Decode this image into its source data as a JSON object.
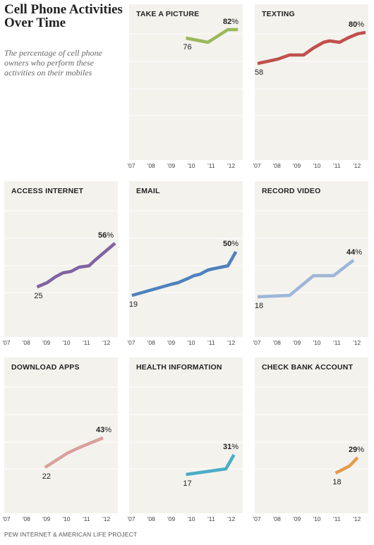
{
  "title": "Cell Phone Activities Over Time",
  "subtitle": "The percentage of cell phone owners who perform these activities on their mobiles",
  "source": "PEW INTERNET & AMERICAN LIFE PROJECT",
  "x_tick_labels": [
    "'07",
    "'08",
    "'09",
    "'10",
    "'11",
    "'12"
  ],
  "chart_data": [
    {
      "type": "line",
      "title": "TAKE A PICTURE",
      "color": "#9ab85a",
      "ylim": [
        0,
        100
      ],
      "xlim": [
        2007,
        2012.4
      ],
      "x": [
        2009.7,
        2010.8,
        2011.8,
        2012.3
      ],
      "values": [
        76,
        73,
        82,
        82
      ],
      "start_label": "76",
      "end_label": "82%"
    },
    {
      "type": "line",
      "title": "TEXTING",
      "color": "#c0504d",
      "ylim": [
        0,
        100
      ],
      "xlim": [
        2007,
        2012.4
      ],
      "x": [
        2007.0,
        2008.0,
        2008.6,
        2009.3,
        2009.8,
        2010.3,
        2010.6,
        2011.1,
        2011.5,
        2012.0,
        2012.4
      ],
      "values": [
        58,
        61,
        64,
        64,
        69,
        73,
        74,
        73,
        76,
        79,
        80
      ],
      "start_label": "58",
      "end_label": "80%"
    },
    {
      "type": "line",
      "title": "ACCESS INTERNET",
      "color": "#8064a2",
      "ylim": [
        0,
        100
      ],
      "xlim": [
        2007,
        2012.4
      ],
      "x": [
        2008.5,
        2009.0,
        2009.4,
        2009.8,
        2010.2,
        2010.6,
        2011.1,
        2011.4,
        2012.4
      ],
      "values": [
        25,
        28,
        32,
        35,
        36,
        39,
        40,
        44,
        56
      ],
      "start_label": "25",
      "end_label": "56%"
    },
    {
      "type": "line",
      "title": "EMAIL",
      "color": "#4f81bd",
      "ylim": [
        0,
        100
      ],
      "xlim": [
        2007,
        2012.4
      ],
      "x": [
        2007.0,
        2008.0,
        2009.0,
        2009.3,
        2009.8,
        2010.1,
        2010.4,
        2010.8,
        2011.1,
        2011.8,
        2012.2
      ],
      "values": [
        19,
        23,
        27,
        28,
        31,
        33,
        34,
        37,
        38,
        40,
        50
      ],
      "start_label": "19",
      "end_label": "50%"
    },
    {
      "type": "line",
      "title": "RECORD VIDEO",
      "color": "#9eb6d8",
      "ylim": [
        0,
        100
      ],
      "xlim": [
        2007,
        2012.4
      ],
      "x": [
        2007.0,
        2008.6,
        2009.8,
        2010.8,
        2011.8
      ],
      "values": [
        18,
        19,
        33,
        33,
        44
      ],
      "start_label": "18",
      "end_label": "44%"
    },
    {
      "type": "line",
      "title": "DOWNLOAD APPS",
      "color": "#d9a09e",
      "ylim": [
        0,
        100
      ],
      "xlim": [
        2007,
        2012.4
      ],
      "x": [
        2008.9,
        2010.0,
        2010.6,
        2011.8
      ],
      "values": [
        22,
        32,
        36,
        43
      ],
      "start_label": "22",
      "end_label": "43%"
    },
    {
      "type": "line",
      "title": "HEALTH INFORMATION",
      "color": "#4bacc6",
      "ylim": [
        0,
        100
      ],
      "xlim": [
        2007,
        2012.4
      ],
      "x": [
        2009.7,
        2011.7,
        2012.1
      ],
      "values": [
        17,
        21,
        31
      ],
      "start_label": "17",
      "end_label": "31%"
    },
    {
      "type": "line",
      "title": "CHECK BANK ACCOUNT",
      "color": "#e49a4e",
      "ylim": [
        0,
        100
      ],
      "xlim": [
        2007,
        2012.4
      ],
      "x": [
        2010.9,
        2011.6,
        2012.0
      ],
      "values": [
        18,
        23,
        29
      ],
      "start_label": "18",
      "end_label": "29%"
    }
  ]
}
